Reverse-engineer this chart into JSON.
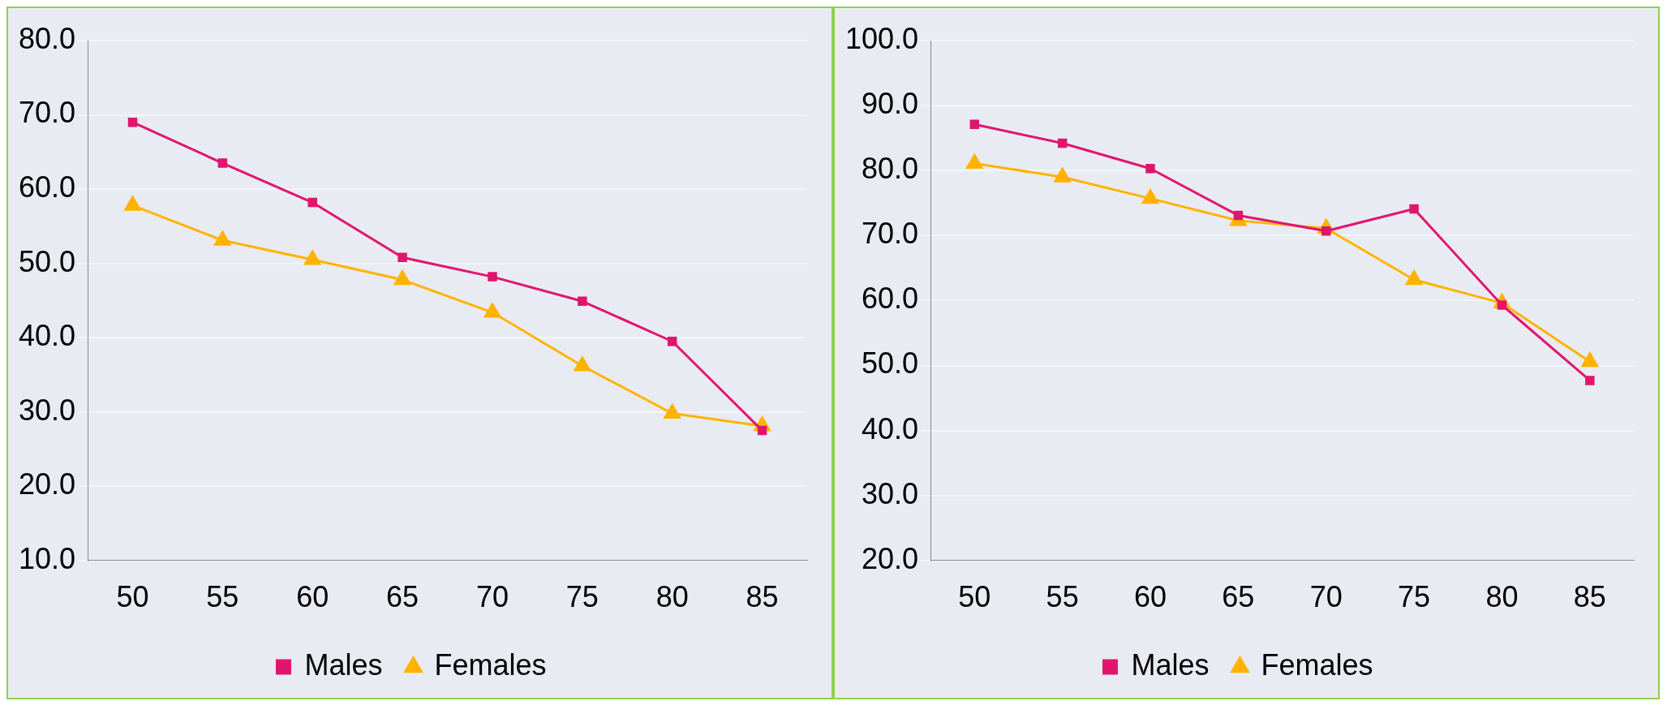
{
  "chart_data": [
    {
      "type": "line",
      "categories": [
        "50",
        "55",
        "60",
        "65",
        "70",
        "75",
        "80",
        "85"
      ],
      "series": [
        {
          "name": "Males",
          "color": "#e0156e",
          "marker": "square",
          "values": [
            69.0,
            63.5,
            58.2,
            50.8,
            48.2,
            44.9,
            39.5,
            27.5
          ]
        },
        {
          "name": "Females",
          "color": "#ffb300",
          "marker": "triangle",
          "values": [
            57.8,
            53.1,
            50.5,
            47.8,
            43.4,
            36.2,
            29.8,
            28.1
          ]
        }
      ],
      "ylim": [
        10,
        80
      ],
      "yticks": [
        {
          "value": 10,
          "label": "10.0"
        },
        {
          "value": 20,
          "label": "20.0"
        },
        {
          "value": 30,
          "label": "30.0"
        },
        {
          "value": 40,
          "label": "40.0"
        },
        {
          "value": 50,
          "label": "50.0"
        },
        {
          "value": 60,
          "label": "60.0"
        },
        {
          "value": 70,
          "label": "70.0"
        },
        {
          "value": 80,
          "label": "80.0"
        }
      ],
      "grid": "y",
      "legend": "bottom",
      "line_style": "solid"
    },
    {
      "type": "line",
      "categories": [
        "50",
        "55",
        "60",
        "65",
        "70",
        "75",
        "80",
        "85"
      ],
      "series": [
        {
          "name": "Males",
          "color": "#e0156e",
          "marker": "square",
          "values": [
            87.1,
            84.2,
            80.3,
            73.1,
            70.7,
            74.1,
            59.3,
            47.7
          ]
        },
        {
          "name": "Females",
          "color": "#ffb300",
          "marker": "triangle",
          "values": [
            81.1,
            79.0,
            75.7,
            72.3,
            71.1,
            63.2,
            59.6,
            50.6
          ]
        }
      ],
      "ylim": [
        20,
        100
      ],
      "yticks": [
        {
          "value": 20,
          "label": "20.0"
        },
        {
          "value": 30,
          "label": "30.0"
        },
        {
          "value": 40,
          "label": "40.0"
        },
        {
          "value": 50,
          "label": "50.0"
        },
        {
          "value": 60,
          "label": "60.0"
        },
        {
          "value": 70,
          "label": "70.0"
        },
        {
          "value": 80,
          "label": "80.0"
        },
        {
          "value": 90,
          "label": "90.0"
        },
        {
          "value": 100,
          "label": "100.0"
        }
      ],
      "grid": "y",
      "legend": "bottom",
      "line_style": "solid"
    }
  ]
}
